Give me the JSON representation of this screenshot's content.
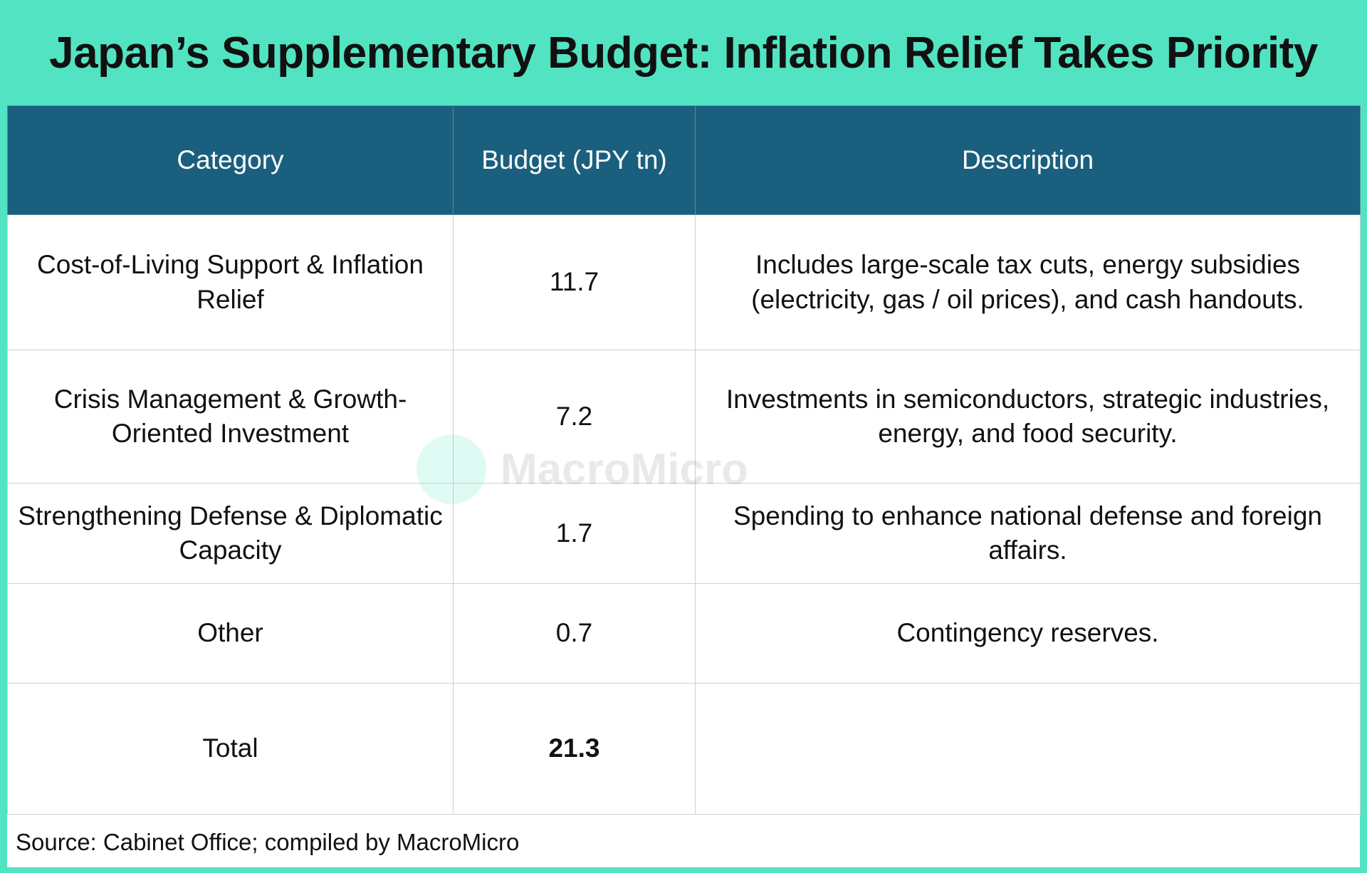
{
  "header": {
    "title": "Japan’s Supplementary Budget: Inflation Relief Takes Priority"
  },
  "table": {
    "headers": [
      "Category",
      "Budget (JPY tn)",
      "Description"
    ],
    "rows": [
      [
        "Cost-of-Living Support & Inflation Relief",
        11.7,
        "Includes large-scale tax cuts, energy subsidies (electricity, gas / oil prices), and cash handouts."
      ],
      [
        "Crisis Management & Growth-Oriented Investment",
        7.2,
        "Investments in semiconductors, strategic industries, energy, and food security."
      ],
      [
        "Strengthening Defense & Diplomatic Capacity",
        1.7,
        "Spending to enhance national defense and foreign affairs."
      ],
      [
        "Other",
        0.7,
        "Contingency reserves."
      ]
    ],
    "total": [
      "Total",
      21.3
    ]
  },
  "footer": {
    "source": "Source: Cabinet Office; compiled by MacroMicro"
  },
  "watermark": "MacroMicro"
}
